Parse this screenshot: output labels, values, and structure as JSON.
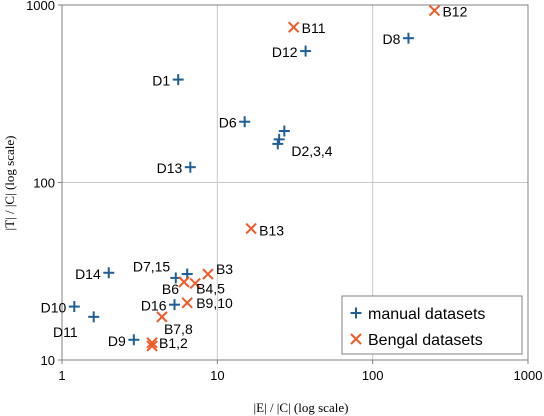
{
  "chart_data": {
    "type": "scatter",
    "xscale": "log",
    "yscale": "log",
    "xlim": [
      1,
      1000
    ],
    "ylim": [
      10,
      1000
    ],
    "xlabel": "|E| / |C|   (log scale)",
    "ylabel": "|T| / |C|   (log scale)",
    "grid": true,
    "legend_position": "bottom-right",
    "x_ticks": [
      "1",
      "10",
      "100",
      "1000"
    ],
    "y_ticks": [
      "10",
      "100",
      "1000"
    ],
    "series": [
      {
        "name": "manual datasets",
        "marker": "plus",
        "color": "#1f5f96",
        "points": [
          {
            "x": 5.6,
            "y": 380
          },
          {
            "x": 37,
            "y": 550
          },
          {
            "x": 170,
            "y": 650
          },
          {
            "x": 15,
            "y": 220
          },
          {
            "x": 24.5,
            "y": 165
          },
          {
            "x": 25,
            "y": 175
          },
          {
            "x": 27,
            "y": 195
          },
          {
            "x": 6.7,
            "y": 122
          },
          {
            "x": 2,
            "y": 31
          },
          {
            "x": 6.4,
            "y": 30.5
          },
          {
            "x": 5.4,
            "y": 29
          },
          {
            "x": 1.2,
            "y": 20
          },
          {
            "x": 1.6,
            "y": 17.5
          },
          {
            "x": 5.3,
            "y": 20.5
          },
          {
            "x": 2.9,
            "y": 13
          }
        ],
        "labels": [
          {
            "text": "D1",
            "x": 5.6,
            "y": 380
          },
          {
            "text": "D12",
            "x": 37,
            "y": 550
          },
          {
            "text": "D8",
            "x": 170,
            "y": 650
          },
          {
            "text": "D6",
            "x": 15,
            "y": 220
          },
          {
            "text": "D2,3,4",
            "x": 27,
            "y": 165
          },
          {
            "text": "D13",
            "x": 6.7,
            "y": 122
          },
          {
            "text": "D14",
            "x": 2,
            "y": 31
          },
          {
            "text": "D7,15",
            "x": 5.6,
            "y": 30
          },
          {
            "text": "D10",
            "x": 1.2,
            "y": 20
          },
          {
            "text": "D11",
            "x": 1.6,
            "y": 17.5
          },
          {
            "text": "D16",
            "x": 5.3,
            "y": 20.5
          },
          {
            "text": "D9",
            "x": 2.9,
            "y": 13
          }
        ]
      },
      {
        "name": "Bengal datasets",
        "marker": "x",
        "color": "#f05a28",
        "points": [
          {
            "x": 31,
            "y": 750
          },
          {
            "x": 250,
            "y": 930
          },
          {
            "x": 16.5,
            "y": 55
          },
          {
            "x": 8.7,
            "y": 30.5
          },
          {
            "x": 6.1,
            "y": 27.5
          },
          {
            "x": 7.2,
            "y": 27
          },
          {
            "x": 6.4,
            "y": 21
          },
          {
            "x": 4.4,
            "y": 17.5
          },
          {
            "x": 3.8,
            "y": 12.5
          },
          {
            "x": 3.8,
            "y": 12
          }
        ],
        "labels": [
          {
            "text": "B11",
            "x": 31,
            "y": 750
          },
          {
            "text": "B12",
            "x": 250,
            "y": 930
          },
          {
            "text": "B13",
            "x": 16.5,
            "y": 55
          },
          {
            "text": "B3",
            "x": 8.7,
            "y": 30.5
          },
          {
            "text": "B6",
            "x": 6.1,
            "y": 27.5
          },
          {
            "text": "B4,5",
            "x": 7.2,
            "y": 27
          },
          {
            "text": "B9,10",
            "x": 6.4,
            "y": 21
          },
          {
            "text": "B7,8",
            "x": 4.4,
            "y": 17.5
          },
          {
            "text": "B1,2",
            "x": 3.8,
            "y": 12.5
          }
        ]
      }
    ]
  }
}
